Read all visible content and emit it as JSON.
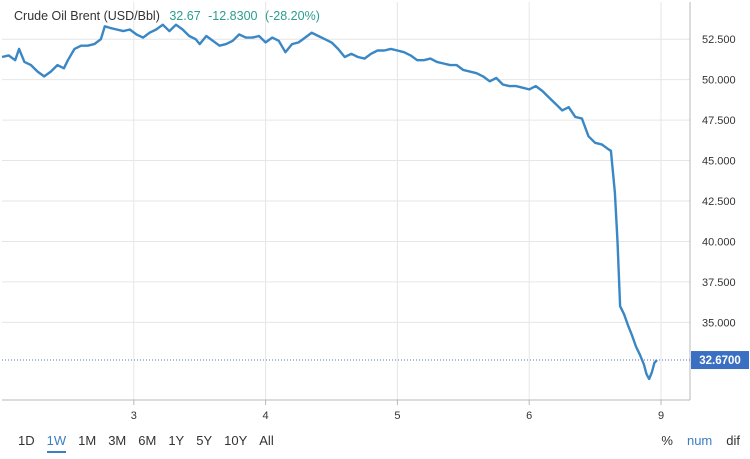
{
  "header": {
    "instrument": "Crude Oil Brent (USD/Bbl)",
    "last": "32.67",
    "change": "-12.8300",
    "change_pct": "(-28.20%)"
  },
  "colors": {
    "series": "#3a87c6",
    "accent": "#3a7fc1",
    "last_badge": "#3a6fc1",
    "quote_text": "#2a9d8f"
  },
  "ranges": {
    "items": [
      "1D",
      "1W",
      "1M",
      "3M",
      "6M",
      "1Y",
      "5Y",
      "10Y",
      "All"
    ],
    "active": "1W"
  },
  "modes": {
    "items": [
      "%",
      "num",
      "dif"
    ],
    "active": "num"
  },
  "chart_data": {
    "type": "line",
    "title": "Crude Oil Brent (USD/Bbl)",
    "xlabel": "",
    "ylabel": "",
    "x_ticks": [
      "3",
      "4",
      "5",
      "6",
      "9"
    ],
    "x_tick_positions": [
      1,
      2,
      3,
      4,
      5
    ],
    "xlim": [
      0.0,
      5.22
    ],
    "y_ticks": [
      "35.000",
      "37.500",
      "40.000",
      "42.500",
      "45.000",
      "47.500",
      "50.000",
      "52.500"
    ],
    "ylim": [
      30.2,
      54.8
    ],
    "y_axis_side": "right",
    "grid": true,
    "last_value_label": "32.6700",
    "series": [
      {
        "values": [
          [
            0.0,
            51.4
          ],
          [
            0.05,
            51.5
          ],
          [
            0.1,
            51.2
          ],
          [
            0.13,
            51.9
          ],
          [
            0.17,
            51.1
          ],
          [
            0.22,
            50.9
          ],
          [
            0.27,
            50.5
          ],
          [
            0.32,
            50.2
          ],
          [
            0.37,
            50.5
          ],
          [
            0.42,
            50.9
          ],
          [
            0.47,
            50.7
          ],
          [
            0.5,
            51.2
          ],
          [
            0.55,
            51.9
          ],
          [
            0.6,
            52.1
          ],
          [
            0.65,
            52.1
          ],
          [
            0.7,
            52.2
          ],
          [
            0.75,
            52.5
          ],
          [
            0.78,
            53.3
          ],
          [
            0.82,
            53.2
          ],
          [
            0.87,
            53.1
          ],
          [
            0.92,
            53.0
          ],
          [
            0.97,
            53.1
          ],
          [
            1.02,
            52.8
          ],
          [
            1.07,
            52.6
          ],
          [
            1.12,
            52.9
          ],
          [
            1.17,
            53.1
          ],
          [
            1.22,
            53.4
          ],
          [
            1.27,
            53.0
          ],
          [
            1.32,
            53.4
          ],
          [
            1.37,
            53.1
          ],
          [
            1.42,
            52.7
          ],
          [
            1.47,
            52.5
          ],
          [
            1.5,
            52.2
          ],
          [
            1.55,
            52.7
          ],
          [
            1.6,
            52.4
          ],
          [
            1.65,
            52.1
          ],
          [
            1.7,
            52.2
          ],
          [
            1.75,
            52.4
          ],
          [
            1.8,
            52.8
          ],
          [
            1.85,
            52.6
          ],
          [
            1.9,
            52.6
          ],
          [
            1.95,
            52.7
          ],
          [
            2.0,
            52.3
          ],
          [
            2.05,
            52.6
          ],
          [
            2.1,
            52.4
          ],
          [
            2.15,
            51.7
          ],
          [
            2.2,
            52.2
          ],
          [
            2.25,
            52.3
          ],
          [
            2.3,
            52.6
          ],
          [
            2.35,
            52.9
          ],
          [
            2.4,
            52.7
          ],
          [
            2.45,
            52.5
          ],
          [
            2.5,
            52.3
          ],
          [
            2.55,
            51.9
          ],
          [
            2.6,
            51.4
          ],
          [
            2.65,
            51.6
          ],
          [
            2.7,
            51.4
          ],
          [
            2.75,
            51.3
          ],
          [
            2.8,
            51.6
          ],
          [
            2.85,
            51.8
          ],
          [
            2.9,
            51.8
          ],
          [
            2.95,
            51.9
          ],
          [
            3.0,
            51.8
          ],
          [
            3.05,
            51.7
          ],
          [
            3.1,
            51.5
          ],
          [
            3.15,
            51.2
          ],
          [
            3.2,
            51.2
          ],
          [
            3.25,
            51.3
          ],
          [
            3.3,
            51.1
          ],
          [
            3.35,
            51.0
          ],
          [
            3.4,
            50.9
          ],
          [
            3.45,
            50.9
          ],
          [
            3.5,
            50.6
          ],
          [
            3.55,
            50.5
          ],
          [
            3.6,
            50.4
          ],
          [
            3.65,
            50.2
          ],
          [
            3.7,
            49.9
          ],
          [
            3.75,
            50.1
          ],
          [
            3.8,
            49.7
          ],
          [
            3.85,
            49.6
          ],
          [
            3.9,
            49.6
          ],
          [
            3.95,
            49.5
          ],
          [
            4.0,
            49.4
          ],
          [
            4.05,
            49.6
          ],
          [
            4.1,
            49.3
          ],
          [
            4.15,
            48.9
          ],
          [
            4.2,
            48.5
          ],
          [
            4.25,
            48.1
          ],
          [
            4.3,
            48.3
          ],
          [
            4.35,
            47.7
          ],
          [
            4.4,
            47.6
          ],
          [
            4.45,
            46.5
          ],
          [
            4.5,
            46.1
          ],
          [
            4.55,
            46.0
          ],
          [
            4.6,
            45.7
          ],
          [
            4.62,
            45.6
          ],
          [
            4.65,
            43.0
          ],
          [
            4.67,
            40.0
          ],
          [
            4.69,
            36.0
          ],
          [
            4.72,
            35.5
          ],
          [
            4.75,
            34.8
          ],
          [
            4.78,
            34.2
          ],
          [
            4.81,
            33.5
          ],
          [
            4.84,
            33.0
          ],
          [
            4.87,
            32.4
          ],
          [
            4.89,
            31.8
          ],
          [
            4.91,
            31.5
          ],
          [
            4.93,
            31.9
          ],
          [
            4.95,
            32.5
          ],
          [
            4.97,
            32.67
          ]
        ]
      }
    ]
  }
}
